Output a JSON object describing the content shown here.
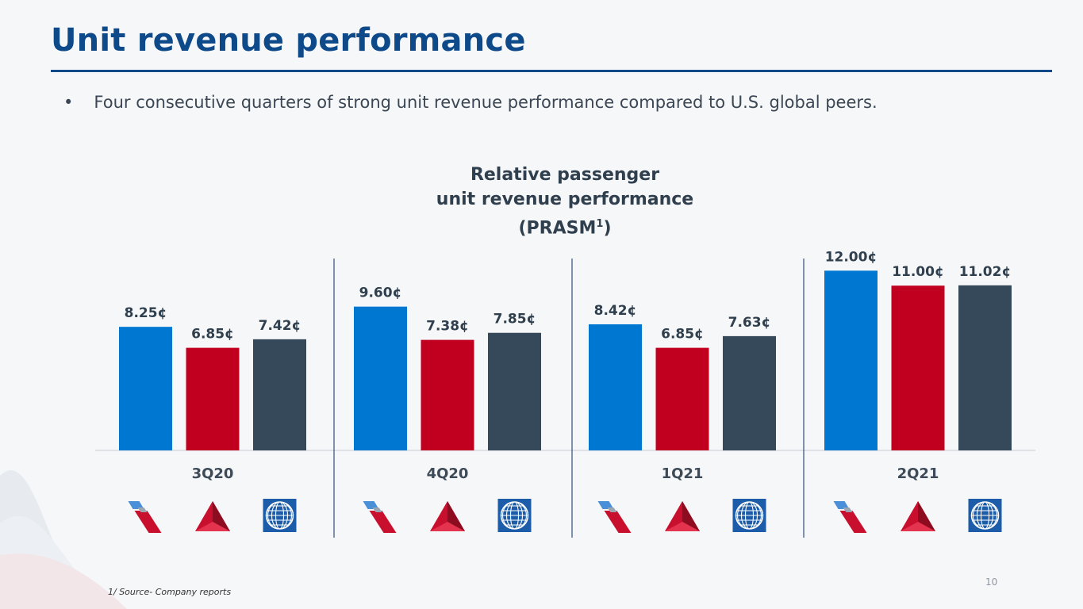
{
  "slide": {
    "title": "Unit revenue performance",
    "bullet_marker": "•",
    "bullet_text": "Four consecutive quarters of strong unit revenue performance compared to U.S. global peers.",
    "footnote": "1/ Source- Company reports",
    "page_number": "10"
  },
  "chart_title": {
    "line1": "Relative passenger",
    "line2": "unit revenue performance",
    "line3": "(PRASM",
    "superscript": "1",
    "line3_end": ")"
  },
  "colors": {
    "american": "#0078d2",
    "delta": "#c1001f",
    "united": "#36495a",
    "title": "#0e4a8a"
  },
  "chart_data": {
    "type": "bar",
    "title": "Relative passenger unit revenue performance (PRASM1)",
    "xlabel": "",
    "ylabel": "",
    "unit": "¢",
    "ylim": [
      0,
      13.5
    ],
    "categories": [
      "3Q20",
      "4Q20",
      "1Q21",
      "2Q21"
    ],
    "series": [
      {
        "name": "american-airlines",
        "icon": "american-airlines-logo-icon",
        "values": [
          8.25,
          9.6,
          8.42,
          12.0
        ],
        "labels": [
          "8.25¢",
          "9.60¢",
          "8.42¢",
          "12.00¢"
        ]
      },
      {
        "name": "delta",
        "icon": "delta-logo-icon",
        "values": [
          6.85,
          7.38,
          6.85,
          11.0
        ],
        "labels": [
          "6.85¢",
          "7.38¢",
          "6.85¢",
          "11.00¢"
        ]
      },
      {
        "name": "united",
        "icon": "united-globe-logo-icon",
        "values": [
          7.42,
          7.85,
          7.63,
          11.02
        ],
        "labels": [
          "7.42¢",
          "7.85¢",
          "7.63¢",
          "11.02¢"
        ]
      }
    ]
  }
}
